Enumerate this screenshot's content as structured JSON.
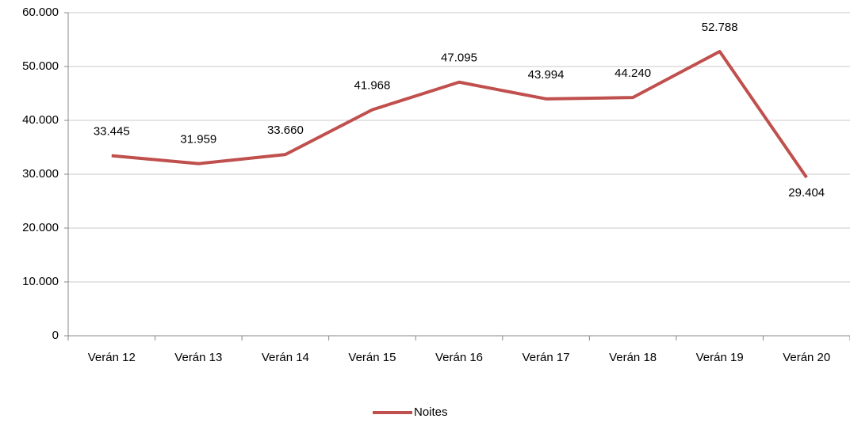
{
  "chart_data": {
    "type": "line",
    "categories": [
      "Verán 12",
      "Verán 13",
      "Verán 14",
      "Verán 15",
      "Verán 16",
      "Verán 17",
      "Verán 18",
      "Verán 19",
      "Verán 20"
    ],
    "series": [
      {
        "name": "Noites",
        "color": "#c0504d",
        "values": [
          33445,
          31959,
          33660,
          41968,
          47095,
          43994,
          44240,
          52788,
          29404
        ],
        "value_labels": [
          "33.445",
          "31.959",
          "33.660",
          "41.968",
          "47.095",
          "43.994",
          "44.240",
          "52.788",
          "29.404"
        ]
      }
    ],
    "ylim": [
      0,
      60000
    ],
    "yticks": [
      0,
      {
        "value": 10000,
        "label": "10.000"
      },
      {
        "value": 20000,
        "label": "20.000"
      },
      {
        "value": 30000,
        "label": "30.000"
      },
      {
        "value": 40000,
        "label": "40.000"
      },
      {
        "value": 50000,
        "label": "50.000"
      },
      {
        "value": 60000,
        "label": "60.000"
      }
    ],
    "grid": true,
    "legend": "bottom"
  }
}
